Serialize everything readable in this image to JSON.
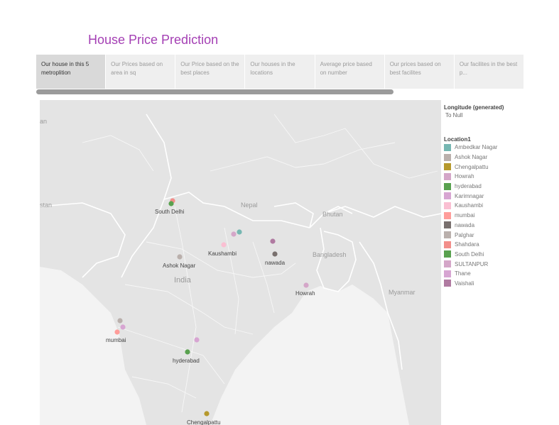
{
  "title": "House Price Prediction",
  "tabs": [
    {
      "label": "Our house in this 5 metroplition",
      "active": true
    },
    {
      "label": "Our Prices based on area in sq",
      "active": false
    },
    {
      "label": "Our Price based on the best places",
      "active": false
    },
    {
      "label": "Our houses in the locations",
      "active": false
    },
    {
      "label": "Average price based on number",
      "active": false
    },
    {
      "label": "Our prices based on best  facilites",
      "active": false
    },
    {
      "label": "Our facilites in the best p...",
      "active": false
    }
  ],
  "map": {
    "region_labels": [
      "stan",
      "Nepal",
      "Bhutan",
      "Bangladesh",
      "India",
      "Myanmar",
      "an"
    ],
    "points": [
      {
        "location": "Ambedkar Nagar",
        "color": "#76b7b2"
      },
      {
        "location": "Ashok Nagar",
        "color": "#bab0ac"
      },
      {
        "location": "Chengalpattu",
        "color": "#b6992d"
      },
      {
        "location": "Howrah",
        "color": "#d4a6c8"
      },
      {
        "location": "hyderabad",
        "color": "#59a14f"
      },
      {
        "location": "Karimnagar",
        "color": "#d7a5d2"
      },
      {
        "location": "Kaushambi",
        "color": "#fabfd2"
      },
      {
        "location": "mumbai",
        "color": "#ff9d9a"
      },
      {
        "location": "nawada",
        "color": "#79706e"
      },
      {
        "location": "Palghar",
        "color": "#bab0ac"
      },
      {
        "location": "Shahdara",
        "color": "#f28e8a"
      },
      {
        "location": "South Delhi",
        "color": "#59a14f"
      },
      {
        "location": "SULTANPUR",
        "color": "#d4a6c8"
      },
      {
        "location": "Thane",
        "color": "#d7a5d2"
      },
      {
        "location": "Vaishali",
        "color": "#b07aa1"
      }
    ],
    "point_labels": [
      "South Delhi",
      "Kaushambi",
      "Ashok Nagar",
      "nawada",
      "Howrah",
      "mumbai",
      "hyderabad",
      "Chengalpattu"
    ]
  },
  "legend": {
    "longitude_title": "Longitude (generated)",
    "longitude_sub": "To Null",
    "location_title": "Location1",
    "items": [
      {
        "label": "Ambedkar Nagar",
        "color": "#76b7b2"
      },
      {
        "label": "Ashok Nagar",
        "color": "#bab0ac"
      },
      {
        "label": "Chengalpattu",
        "color": "#b6992d"
      },
      {
        "label": "Howrah",
        "color": "#d4a6c8"
      },
      {
        "label": "hyderabad",
        "color": "#59a14f"
      },
      {
        "label": "Karimnagar",
        "color": "#d7a5d2"
      },
      {
        "label": "Kaushambi",
        "color": "#fabfd2"
      },
      {
        "label": "mumbai",
        "color": "#ff9d9a"
      },
      {
        "label": "nawada",
        "color": "#79706e"
      },
      {
        "label": "Palghar",
        "color": "#bab0ac"
      },
      {
        "label": "Shahdara",
        "color": "#f28e8a"
      },
      {
        "label": "South Delhi",
        "color": "#59a14f"
      },
      {
        "label": "SULTANPUR",
        "color": "#d4a6c8"
      },
      {
        "label": "Thane",
        "color": "#d7a5d2"
      },
      {
        "label": "Vaishali",
        "color": "#b07aa1"
      }
    ]
  }
}
